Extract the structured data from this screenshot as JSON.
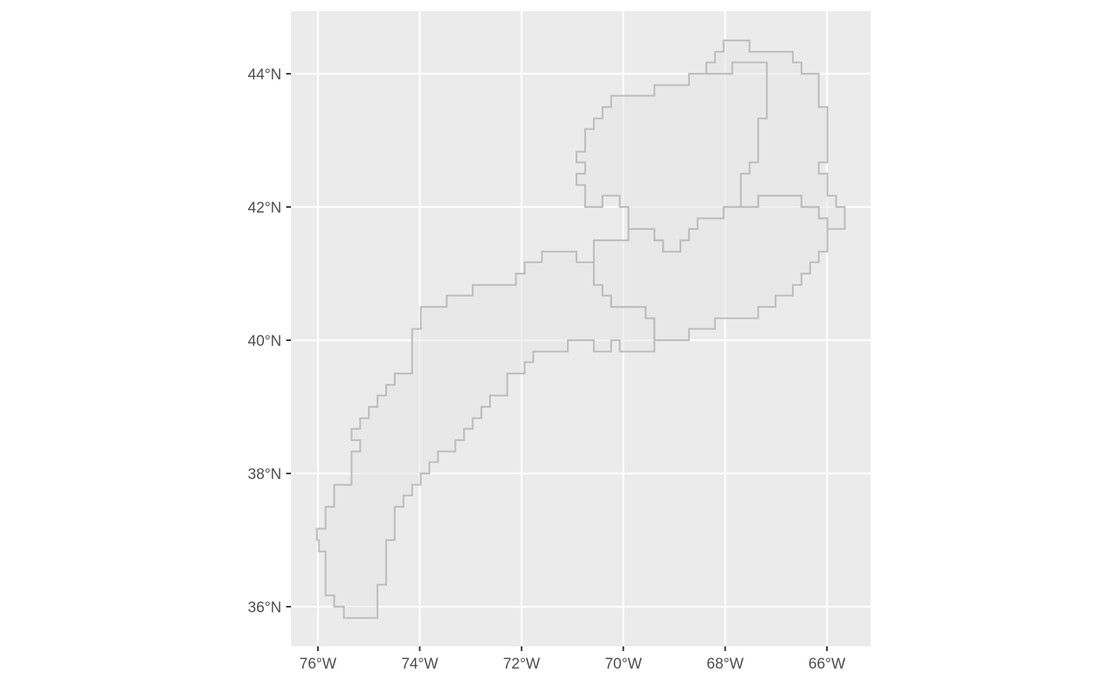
{
  "map": {
    "projection": "geographic lon/lat (ggplot2 / sf style)",
    "extent": {
      "lon": [
        -76.52,
        -65.15
      ],
      "lat": [
        35.42,
        44.97
      ]
    },
    "axis_ticks": {
      "x": [
        {
          "value": -76,
          "label": "76°W"
        },
        {
          "value": -74,
          "label": "74°W"
        },
        {
          "value": -72,
          "label": "72°W"
        },
        {
          "value": -70,
          "label": "70°W"
        },
        {
          "value": -68,
          "label": "68°W"
        },
        {
          "value": -66,
          "label": "66°W"
        }
      ],
      "y": [
        {
          "value": 36,
          "label": "36°N"
        },
        {
          "value": 38,
          "label": "38°N"
        },
        {
          "value": 40,
          "label": "40°N"
        },
        {
          "value": 42,
          "label": "42°N"
        },
        {
          "value": 44,
          "label": "44°N"
        }
      ]
    },
    "colors": {
      "panel_background": "#ebebeb",
      "grid": "#ffffff",
      "polygon_fill": "#e6e6e6",
      "polygon_outline": "#bdbdbd",
      "tick_text": "#4d4d4d",
      "tick_mark": "#333333"
    },
    "polygons": [
      {
        "name": "south-west-strip",
        "coords": [
          [
            -75.98,
            36.95
          ],
          [
            -75.98,
            36.83
          ],
          [
            -75.85,
            36.83
          ],
          [
            -75.85,
            36.17
          ],
          [
            -75.68,
            36.17
          ],
          [
            -75.68,
            36.0
          ],
          [
            -75.49,
            36.0
          ],
          [
            -75.49,
            35.83
          ],
          [
            -74.83,
            35.83
          ],
          [
            -74.83,
            36.33
          ],
          [
            -74.66,
            36.33
          ],
          [
            -74.66,
            37.0
          ],
          [
            -74.49,
            37.0
          ],
          [
            -74.49,
            37.5
          ],
          [
            -74.32,
            37.5
          ],
          [
            -74.32,
            37.67
          ],
          [
            -74.15,
            37.67
          ],
          [
            -74.15,
            37.83
          ],
          [
            -73.98,
            37.83
          ],
          [
            -73.98,
            38.0
          ],
          [
            -73.81,
            38.0
          ],
          [
            -73.81,
            38.17
          ],
          [
            -73.64,
            38.17
          ],
          [
            -73.64,
            38.33
          ],
          [
            -73.3,
            38.33
          ],
          [
            -73.3,
            38.5
          ],
          [
            -73.13,
            38.5
          ],
          [
            -73.13,
            38.67
          ],
          [
            -72.96,
            38.67
          ],
          [
            -72.96,
            38.83
          ],
          [
            -72.79,
            38.83
          ],
          [
            -72.79,
            39.0
          ],
          [
            -72.62,
            39.0
          ],
          [
            -72.62,
            39.17
          ],
          [
            -72.28,
            39.17
          ],
          [
            -72.28,
            39.5
          ],
          [
            -71.94,
            39.5
          ],
          [
            -71.94,
            39.67
          ],
          [
            -71.77,
            39.67
          ],
          [
            -71.77,
            39.83
          ],
          [
            -71.09,
            39.83
          ],
          [
            -71.09,
            40.0
          ],
          [
            -70.58,
            40.0
          ],
          [
            -70.58,
            39.83
          ],
          [
            -70.24,
            39.83
          ],
          [
            -70.24,
            40.0
          ],
          [
            -70.07,
            40.0
          ],
          [
            -70.07,
            39.83
          ],
          [
            -69.39,
            39.83
          ],
          [
            -69.39,
            40.33
          ],
          [
            -69.56,
            40.33
          ],
          [
            -69.56,
            40.5
          ],
          [
            -70.24,
            40.5
          ],
          [
            -70.24,
            40.67
          ],
          [
            -70.41,
            40.67
          ],
          [
            -70.41,
            40.83
          ],
          [
            -70.58,
            40.83
          ],
          [
            -70.58,
            41.17
          ],
          [
            -70.92,
            41.17
          ],
          [
            -70.92,
            41.33
          ],
          [
            -71.6,
            41.33
          ],
          [
            -71.6,
            41.17
          ],
          [
            -71.94,
            41.17
          ],
          [
            -71.94,
            41.0
          ],
          [
            -72.11,
            41.0
          ],
          [
            -72.11,
            40.83
          ],
          [
            -72.96,
            40.83
          ],
          [
            -72.96,
            40.67
          ],
          [
            -73.47,
            40.67
          ],
          [
            -73.47,
            40.5
          ],
          [
            -73.98,
            40.5
          ],
          [
            -73.98,
            40.17
          ],
          [
            -74.15,
            40.17
          ],
          [
            -74.15,
            39.5
          ],
          [
            -74.49,
            39.5
          ],
          [
            -74.49,
            39.33
          ],
          [
            -74.66,
            39.33
          ],
          [
            -74.66,
            39.17
          ],
          [
            -74.83,
            39.17
          ],
          [
            -74.83,
            39.0
          ],
          [
            -75.0,
            39.0
          ],
          [
            -75.0,
            38.83
          ],
          [
            -75.17,
            38.83
          ],
          [
            -75.17,
            38.67
          ],
          [
            -75.34,
            38.67
          ],
          [
            -75.34,
            38.5
          ],
          [
            -75.17,
            38.5
          ],
          [
            -75.17,
            38.33
          ],
          [
            -75.34,
            38.33
          ],
          [
            -75.34,
            37.83
          ],
          [
            -75.68,
            37.83
          ],
          [
            -75.68,
            37.5
          ],
          [
            -75.85,
            37.5
          ],
          [
            -75.85,
            37.17
          ],
          [
            -76.02,
            37.17
          ],
          [
            -76.02,
            37.0
          ],
          [
            -75.98,
            37.0
          ]
        ]
      },
      {
        "name": "south-east-block",
        "coords": [
          [
            -70.58,
            41.5
          ],
          [
            -69.9,
            41.5
          ],
          [
            -69.9,
            41.67
          ],
          [
            -69.39,
            41.67
          ],
          [
            -69.39,
            41.5
          ],
          [
            -69.22,
            41.5
          ],
          [
            -69.22,
            41.33
          ],
          [
            -68.88,
            41.33
          ],
          [
            -68.88,
            41.5
          ],
          [
            -68.71,
            41.5
          ],
          [
            -68.71,
            41.67
          ],
          [
            -68.54,
            41.67
          ],
          [
            -68.54,
            41.83
          ],
          [
            -68.03,
            41.83
          ],
          [
            -68.03,
            42.0
          ],
          [
            -67.35,
            42.0
          ],
          [
            -67.35,
            42.17
          ],
          [
            -66.5,
            42.17
          ],
          [
            -66.5,
            42.0
          ],
          [
            -66.16,
            42.0
          ],
          [
            -66.16,
            41.83
          ],
          [
            -65.99,
            41.83
          ],
          [
            -65.99,
            41.33
          ],
          [
            -66.16,
            41.33
          ],
          [
            -66.16,
            41.17
          ],
          [
            -66.33,
            41.17
          ],
          [
            -66.33,
            41.0
          ],
          [
            -66.5,
            41.0
          ],
          [
            -66.5,
            40.83
          ],
          [
            -66.67,
            40.83
          ],
          [
            -66.67,
            40.67
          ],
          [
            -67.01,
            40.67
          ],
          [
            -67.01,
            40.5
          ],
          [
            -67.35,
            40.5
          ],
          [
            -67.35,
            40.33
          ],
          [
            -68.2,
            40.33
          ],
          [
            -68.2,
            40.17
          ],
          [
            -68.71,
            40.17
          ],
          [
            -68.71,
            40.0
          ],
          [
            -69.39,
            40.0
          ],
          [
            -69.39,
            40.33
          ],
          [
            -69.56,
            40.33
          ],
          [
            -69.56,
            40.5
          ],
          [
            -70.24,
            40.5
          ],
          [
            -70.24,
            40.67
          ],
          [
            -70.41,
            40.67
          ],
          [
            -70.41,
            40.83
          ],
          [
            -70.58,
            40.83
          ],
          [
            -70.58,
            41.5
          ]
        ]
      },
      {
        "name": "northern-block",
        "coords": [
          [
            -70.75,
            42.0
          ],
          [
            -70.75,
            42.33
          ],
          [
            -70.92,
            42.33
          ],
          [
            -70.92,
            42.5
          ],
          [
            -70.75,
            42.5
          ],
          [
            -70.75,
            42.67
          ],
          [
            -70.92,
            42.67
          ],
          [
            -70.92,
            42.83
          ],
          [
            -70.75,
            42.83
          ],
          [
            -70.75,
            43.17
          ],
          [
            -70.58,
            43.17
          ],
          [
            -70.58,
            43.33
          ],
          [
            -70.41,
            43.33
          ],
          [
            -70.41,
            43.5
          ],
          [
            -70.24,
            43.5
          ],
          [
            -70.24,
            43.67
          ],
          [
            -69.39,
            43.67
          ],
          [
            -69.39,
            43.83
          ],
          [
            -68.71,
            43.83
          ],
          [
            -68.71,
            44.0
          ],
          [
            -68.37,
            44.0
          ],
          [
            -68.37,
            44.17
          ],
          [
            -68.2,
            44.17
          ],
          [
            -68.2,
            44.33
          ],
          [
            -68.03,
            44.33
          ],
          [
            -68.03,
            44.5
          ],
          [
            -67.52,
            44.5
          ],
          [
            -67.52,
            44.33
          ],
          [
            -66.67,
            44.33
          ],
          [
            -66.67,
            44.17
          ],
          [
            -66.5,
            44.17
          ],
          [
            -66.5,
            44.0
          ],
          [
            -66.16,
            44.0
          ],
          [
            -66.16,
            43.5
          ],
          [
            -65.99,
            43.5
          ],
          [
            -65.99,
            42.67
          ],
          [
            -66.16,
            42.67
          ],
          [
            -66.16,
            42.5
          ],
          [
            -65.99,
            42.5
          ],
          [
            -65.99,
            42.17
          ],
          [
            -65.82,
            42.17
          ],
          [
            -65.82,
            42.0
          ],
          [
            -65.65,
            42.0
          ],
          [
            -65.65,
            41.67
          ],
          [
            -65.99,
            41.67
          ],
          [
            -65.99,
            41.83
          ],
          [
            -66.16,
            41.83
          ],
          [
            -66.16,
            42.0
          ],
          [
            -66.5,
            42.0
          ],
          [
            -66.5,
            42.17
          ],
          [
            -67.35,
            42.17
          ],
          [
            -67.35,
            42.0
          ],
          [
            -68.03,
            42.0
          ],
          [
            -68.03,
            41.83
          ],
          [
            -68.54,
            41.83
          ],
          [
            -68.54,
            41.67
          ],
          [
            -68.71,
            41.67
          ],
          [
            -68.71,
            41.5
          ],
          [
            -68.88,
            41.5
          ],
          [
            -68.88,
            41.33
          ],
          [
            -69.22,
            41.33
          ],
          [
            -69.22,
            41.5
          ],
          [
            -69.39,
            41.5
          ],
          [
            -69.39,
            41.67
          ],
          [
            -69.9,
            41.67
          ],
          [
            -69.9,
            42.0
          ],
          [
            -70.07,
            42.0
          ],
          [
            -70.07,
            42.17
          ],
          [
            -70.41,
            42.17
          ],
          [
            -70.41,
            42.0
          ],
          [
            -70.75,
            42.0
          ]
        ]
      },
      {
        "name": "inner-divider",
        "closed": false,
        "coords": [
          [
            -68.37,
            44.0
          ],
          [
            -67.86,
            44.0
          ],
          [
            -67.86,
            44.17
          ],
          [
            -67.18,
            44.17
          ],
          [
            -67.18,
            43.33
          ],
          [
            -67.35,
            43.33
          ],
          [
            -67.35,
            43.17
          ],
          [
            -67.35,
            42.67
          ],
          [
            -67.52,
            42.67
          ],
          [
            -67.52,
            42.5
          ],
          [
            -67.69,
            42.5
          ],
          [
            -67.69,
            42.0
          ]
        ]
      }
    ]
  }
}
